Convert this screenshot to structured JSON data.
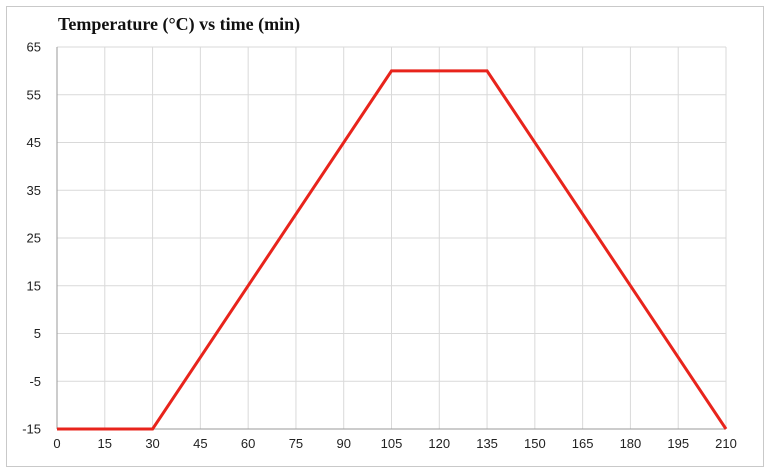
{
  "chart_data": {
    "type": "line",
    "title": "Temperature (°C) vs time (min)",
    "xlabel": "",
    "ylabel": "",
    "xlim": [
      0,
      210
    ],
    "ylim": [
      -15,
      65
    ],
    "x_ticks": [
      0,
      15,
      30,
      45,
      60,
      75,
      90,
      105,
      120,
      135,
      150,
      165,
      180,
      195,
      210
    ],
    "y_ticks": [
      -15,
      -5,
      5,
      15,
      25,
      35,
      45,
      55,
      65
    ],
    "grid": true,
    "legend": "none",
    "series": [
      {
        "color": "#e8241c",
        "x": [
          0,
          30,
          105,
          135,
          210
        ],
        "y": [
          -15,
          -15,
          60,
          60,
          -15
        ]
      }
    ]
  }
}
